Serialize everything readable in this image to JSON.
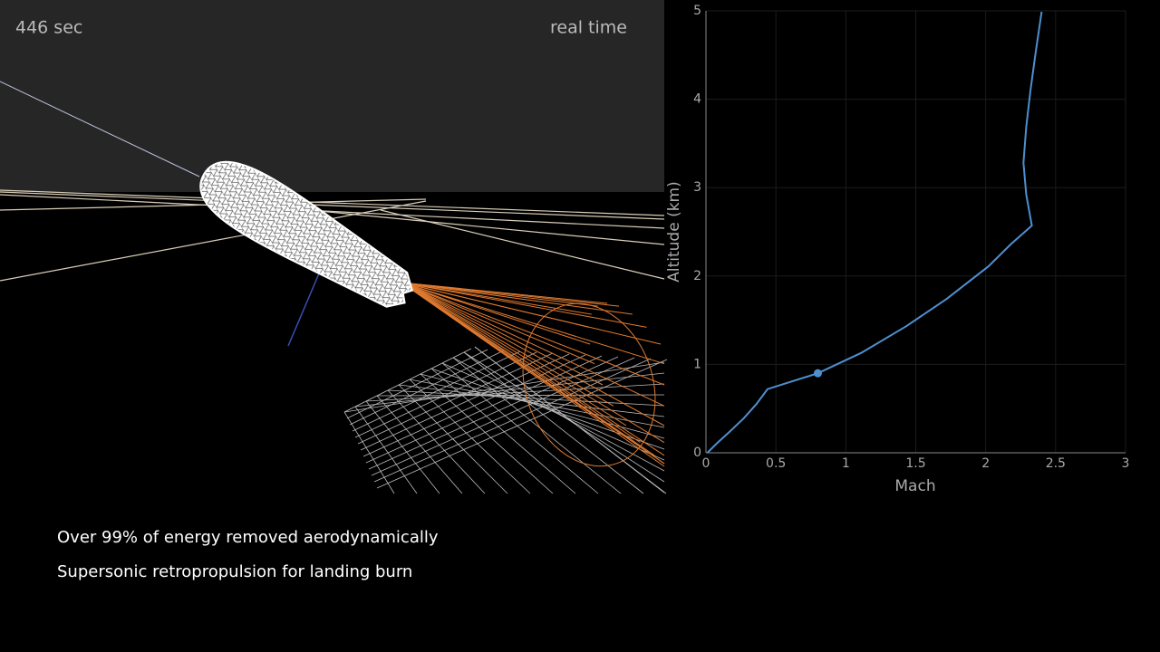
{
  "overlay": {
    "time": "446 sec",
    "mode": "real time",
    "captions": [
      "Over 99% of energy removed aerodynamically",
      "Supersonic retropropulsion for landing burn"
    ]
  },
  "chart_data": {
    "type": "line",
    "x_label": "Mach",
    "y_label": "Altitude (km)",
    "x": [
      0.01,
      0.08,
      0.17,
      0.27,
      0.36,
      0.44,
      0.8,
      1.11,
      1.43,
      1.72,
      2.02,
      2.18,
      2.33,
      2.29,
      2.27,
      2.29,
      2.32,
      2.36,
      2.4
    ],
    "series": [
      {
        "color": "#4e8fcf",
        "values": [
          0,
          0.11,
          0.24,
          0.39,
          0.55,
          0.72,
          0.9,
          1.13,
          1.43,
          1.74,
          2.11,
          2.36,
          2.57,
          2.92,
          3.28,
          3.69,
          4.1,
          4.56,
          4.99
        ]
      }
    ],
    "marker": {
      "x": 0.8,
      "y": 0.9,
      "color": "#4e8fcf"
    },
    "xlim": [
      0,
      3
    ],
    "ylim": [
      0,
      5
    ],
    "xticks": [
      0,
      0.5,
      1,
      1.5,
      2,
      2.5,
      3
    ],
    "yticks": [
      0,
      1,
      2,
      3,
      4,
      5
    ],
    "grid": true
  }
}
